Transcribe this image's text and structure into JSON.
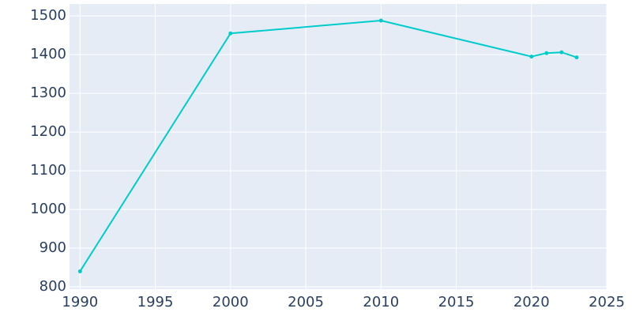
{
  "chart_data": {
    "type": "line",
    "x": [
      1990,
      2000,
      2010,
      2020,
      2021,
      2022,
      2023
    ],
    "values": [
      840,
      1455,
      1488,
      1395,
      1404,
      1406,
      1393
    ],
    "color": "#00cccc",
    "xlim": [
      1989.3,
      2025
    ],
    "xticks": [
      1990,
      1995,
      2000,
      2005,
      2010,
      2015,
      2020,
      2025
    ],
    "ylim": [
      794,
      1531
    ],
    "yticks": [
      800,
      900,
      1000,
      1100,
      1200,
      1300,
      1400,
      1500
    ],
    "grid": true
  }
}
